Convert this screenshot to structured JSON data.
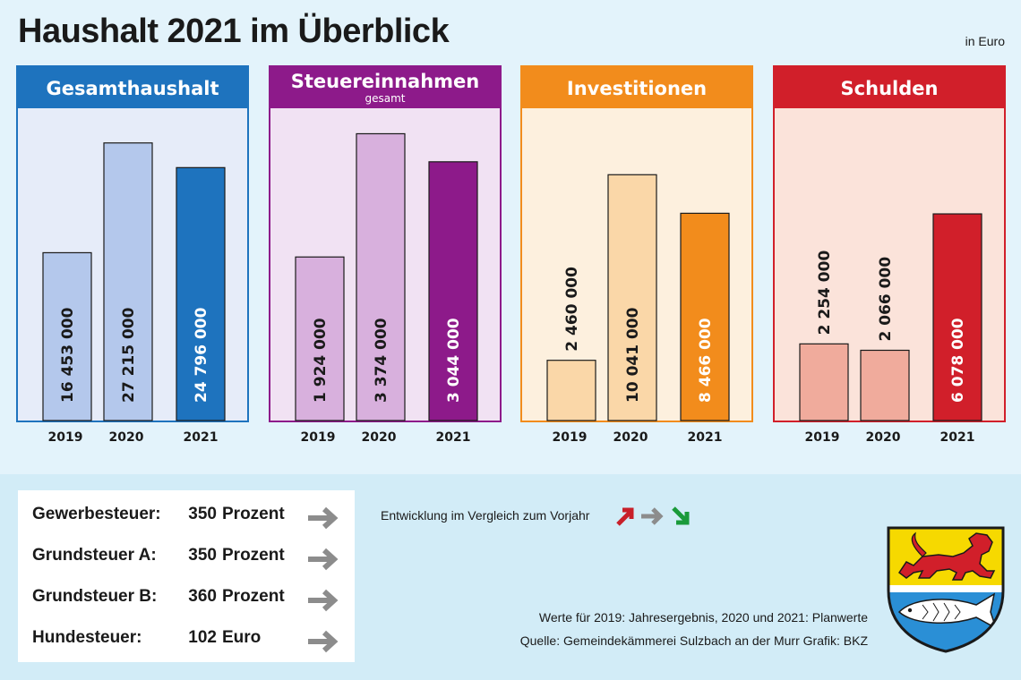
{
  "title": "Haushalt 2021 im Überblick",
  "unit": "in Euro",
  "chart_data": [
    {
      "type": "bar",
      "title": "Gesamthaushalt",
      "subtitle": "",
      "categories": [
        "2019",
        "2020",
        "2021"
      ],
      "values": [
        16453000,
        27215000,
        24796000
      ],
      "labels": [
        "16 453 000",
        "27 215 000",
        "24 796 000"
      ],
      "ylim": [
        0,
        30000000
      ],
      "header_color": "#1e73be",
      "bg_color": "#e6ecf9",
      "bar_colors": [
        "#b4c8ec",
        "#b4c8ec",
        "#1e73be"
      ],
      "label_colors": [
        "#1a1a1a",
        "#1a1a1a",
        "#ffffff"
      ]
    },
    {
      "type": "bar",
      "title": "Steuereinnahmen",
      "subtitle": "gesamt",
      "categories": [
        "2019",
        "2020",
        "2021"
      ],
      "values": [
        1924000,
        3374000,
        3044000
      ],
      "labels": [
        "1 924 000",
        "3 374 000",
        "3 044 000"
      ],
      "ylim": [
        0,
        3600000
      ],
      "header_color": "#8d1a8a",
      "bg_color": "#f1e2f3",
      "bar_colors": [
        "#d8b0dd",
        "#d8b0dd",
        "#8d1a8a"
      ],
      "label_colors": [
        "#1a1a1a",
        "#1a1a1a",
        "#ffffff"
      ]
    },
    {
      "type": "bar",
      "title": "Investitionen",
      "subtitle": "",
      "categories": [
        "2019",
        "2020",
        "2021"
      ],
      "values": [
        2460000,
        10041000,
        8466000
      ],
      "labels": [
        "2 460 000",
        "10 041 000",
        "8 466 000"
      ],
      "ylim": [
        0,
        12500000
      ],
      "header_color": "#f28c1c",
      "bg_color": "#fdf0de",
      "bar_colors": [
        "#fad7a8",
        "#fad7a8",
        "#f28c1c"
      ],
      "label_colors": [
        "#1a1a1a",
        "#1a1a1a",
        "#ffffff"
      ]
    },
    {
      "type": "bar",
      "title": "Schulden",
      "subtitle": "",
      "categories": [
        "2019",
        "2020",
        "2021"
      ],
      "values": [
        2254000,
        2066000,
        6078000
      ],
      "labels": [
        "2 254 000",
        "2 066 000",
        "6 078 000"
      ],
      "ylim": [
        0,
        9000000
      ],
      "header_color": "#d11f2a",
      "bg_color": "#fbe3da",
      "bar_colors": [
        "#f0ab9c",
        "#f0ab9c",
        "#d11f2a"
      ],
      "label_colors": [
        "#1a1a1a",
        "#1a1a1a",
        "#ffffff"
      ]
    }
  ],
  "taxes": [
    {
      "name": "Gewerbesteuer:",
      "value": "350",
      "unit": "Prozent",
      "trend": "gleich"
    },
    {
      "name": "Grundsteuer A:",
      "value": "350",
      "unit": "Prozent",
      "trend": "gleich"
    },
    {
      "name": "Grundsteuer B:",
      "value": "360",
      "unit": "Prozent",
      "trend": "gleich"
    },
    {
      "name": "Hundesteuer:",
      "value": "102",
      "unit": "Euro",
      "trend": "gleich"
    }
  ],
  "legend": {
    "text": "Entwicklung im Vergleich zum Vorjahr",
    "up_color": "#c8202a",
    "same_color": "#8c8c8c",
    "down_color": "#1a9a3a"
  },
  "notes": {
    "line1": "Werte für 2019: Jahresergebnis, 2020 und 2021: Planwerte",
    "line2": "Quelle: Gemeindekämmerei Sulzbach an der Murr   Grafik: BKZ"
  },
  "crest": {
    "icon": "coat-of-arms-icon",
    "top_color": "#f6d900",
    "lion_color": "#d11f2a",
    "bottom_color": "#2a8fd6",
    "fish_color": "#ffffff"
  }
}
